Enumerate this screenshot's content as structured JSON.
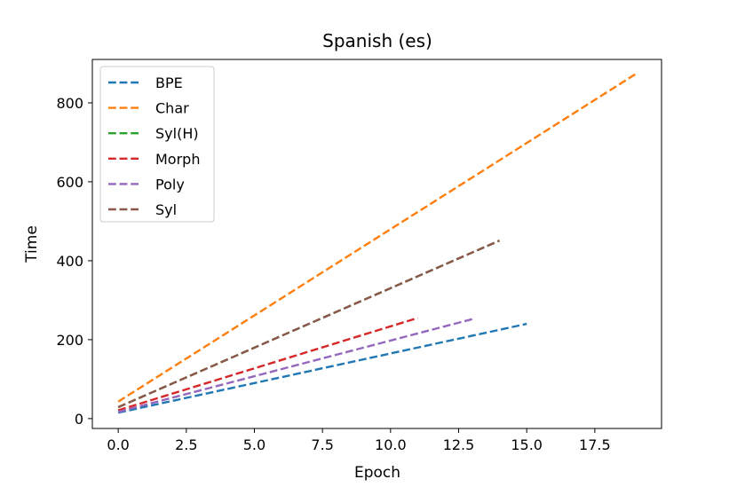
{
  "chart_data": {
    "type": "line",
    "title": "Spanish (es)",
    "xlabel": "Epoch",
    "ylabel": "Time",
    "xlim": [
      -0.95,
      19.95
    ],
    "ylim": [
      -25,
      910
    ],
    "xticks": [
      0.0,
      2.5,
      5.0,
      7.5,
      10.0,
      12.5,
      15.0,
      17.5
    ],
    "xtick_labels": [
      "0.0",
      "2.5",
      "5.0",
      "7.5",
      "10.0",
      "12.5",
      "15.0",
      "17.5"
    ],
    "yticks": [
      0,
      200,
      400,
      600,
      800
    ],
    "ytick_labels": [
      "0",
      "200",
      "400",
      "600",
      "800"
    ],
    "grid": false,
    "legend_position": "upper-left",
    "line_style": "dashed",
    "series": [
      {
        "name": "BPE",
        "color": "#1f77b4",
        "x": [
          0,
          15
        ],
        "y": [
          15,
          240
        ]
      },
      {
        "name": "Char",
        "color": "#ff7f0e",
        "x": [
          0,
          19
        ],
        "y": [
          43,
          873
        ]
      },
      {
        "name": "Syl(H)",
        "color": "#2ca02c",
        "x": [
          0,
          14
        ],
        "y": [
          29,
          451
        ]
      },
      {
        "name": "Morph",
        "color": "#d62728",
        "x": [
          0,
          11
        ],
        "y": [
          21,
          255
        ]
      },
      {
        "name": "Poly",
        "color": "#9467bd",
        "x": [
          0,
          13
        ],
        "y": [
          17,
          252
        ]
      },
      {
        "name": "Syl",
        "color": "#8c564b",
        "x": [
          0,
          14
        ],
        "y": [
          29,
          451
        ]
      }
    ]
  }
}
